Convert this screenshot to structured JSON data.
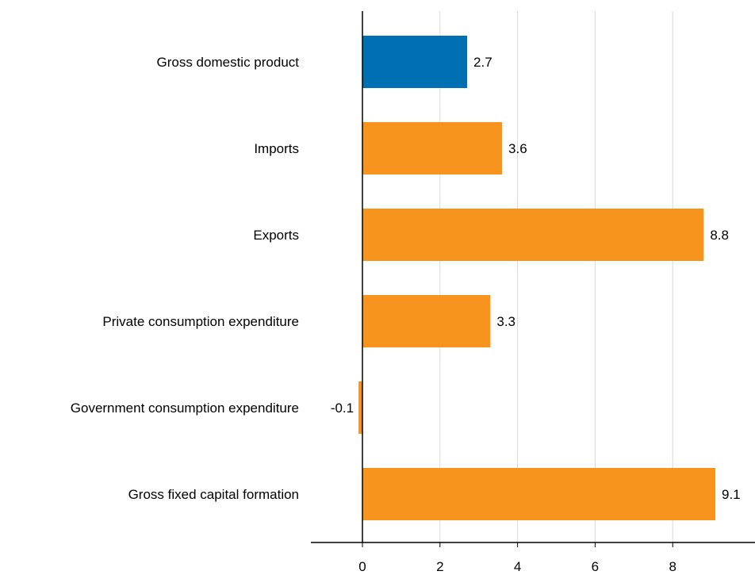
{
  "chart_data": {
    "type": "bar",
    "orientation": "horizontal",
    "title": "",
    "xlabel": "",
    "ylabel": "",
    "categories": [
      "Gross domestic product",
      "Imports",
      "Exports",
      "Private consumption expenditure",
      "Government consumption expenditure",
      "Gross fixed capital formation"
    ],
    "values": [
      2.7,
      3.6,
      8.8,
      3.3,
      -0.1,
      9.1
    ],
    "value_labels": [
      "2.7",
      "3.6",
      "8.8",
      "3.3",
      "-0.1",
      "9.1"
    ],
    "bar_colors": [
      "#0070b2",
      "#f7941e",
      "#f7941e",
      "#f7941e",
      "#f7941e",
      "#f7941e"
    ],
    "xlim": [
      -1.3,
      10
    ],
    "x_ticks": [
      0,
      2,
      4,
      6,
      8
    ],
    "x_tick_labels": [
      "0",
      "2",
      "4",
      "6",
      "8"
    ],
    "grid": "vertical",
    "legend": "none"
  }
}
